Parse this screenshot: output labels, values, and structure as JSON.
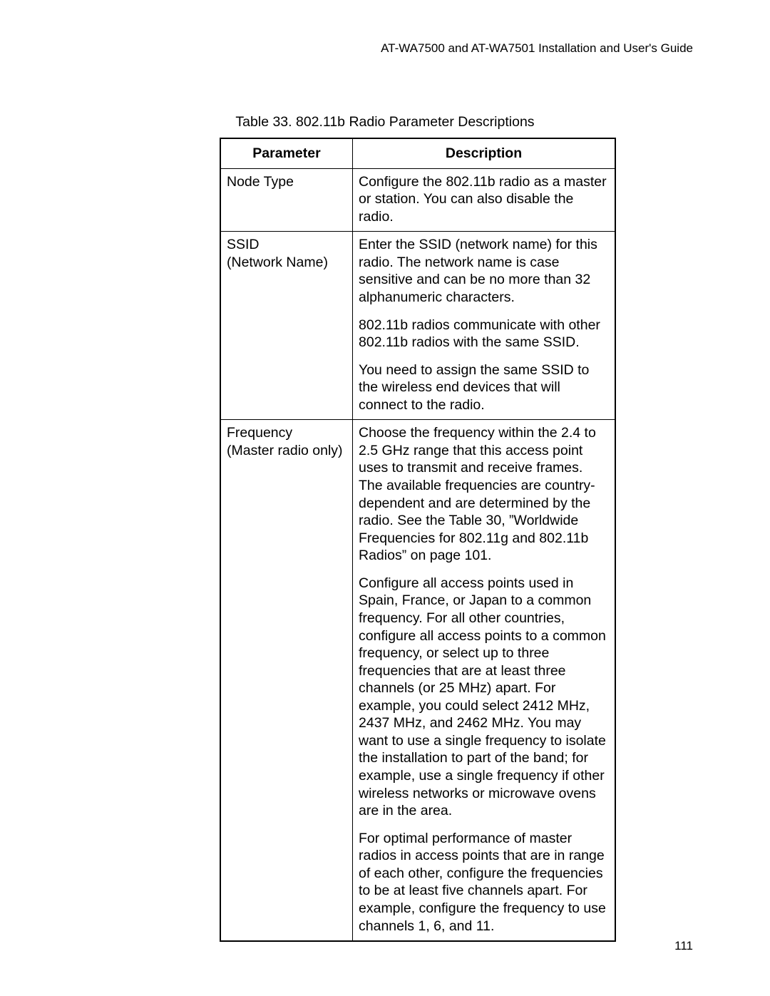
{
  "header": {
    "text": "AT-WA7500 and AT-WA7501 Installation and User's Guide"
  },
  "caption": "Table 33. 802.11b Radio Parameter Descriptions",
  "table": {
    "headers": {
      "parameter": "Parameter",
      "description": "Description"
    },
    "rows": [
      {
        "parameter": "Node Type",
        "description_paragraphs": [
          "Configure the 802.11b radio as a master or station. You can also disable the radio."
        ]
      },
      {
        "parameter": "SSID\n(Network Name)",
        "description_paragraphs": [
          "Enter the SSID (network name) for this radio. The network name is case sensitive and can be no more than 32 alphanumeric characters.",
          "802.11b radios communicate with other 802.11b radios with the same SSID.",
          "You need to assign the same SSID to the wireless end devices that will connect to the radio."
        ]
      },
      {
        "parameter": "Frequency\n(Master radio only)",
        "description_paragraphs": [
          "Choose the frequency within the 2.4 to 2.5 GHz range that this access point uses to transmit and receive frames. The available frequencies are country-dependent and are determined by the radio. See the Table 30, ”Worldwide Frequencies for 802.11g and 802.11b Radios” on page 101.",
          "Configure all access points used in Spain, France, or Japan to a common frequency. For all other countries, configure all access points to a common frequency, or select up to three frequencies that are at least three channels (or 25 MHz) apart. For example, you could select 2412 MHz, 2437 MHz, and 2462 MHz. You may want to use a single frequency to isolate the installation to part of the band; for example, use a single frequency if other wireless networks or microwave ovens are in the area.",
          "For optimal performance of master radios in access points that are in range of each other, configure the frequencies to be at least five channels apart. For example, configure the frequency to use channels 1, 6, and 11."
        ]
      }
    ]
  },
  "page_number": "111"
}
